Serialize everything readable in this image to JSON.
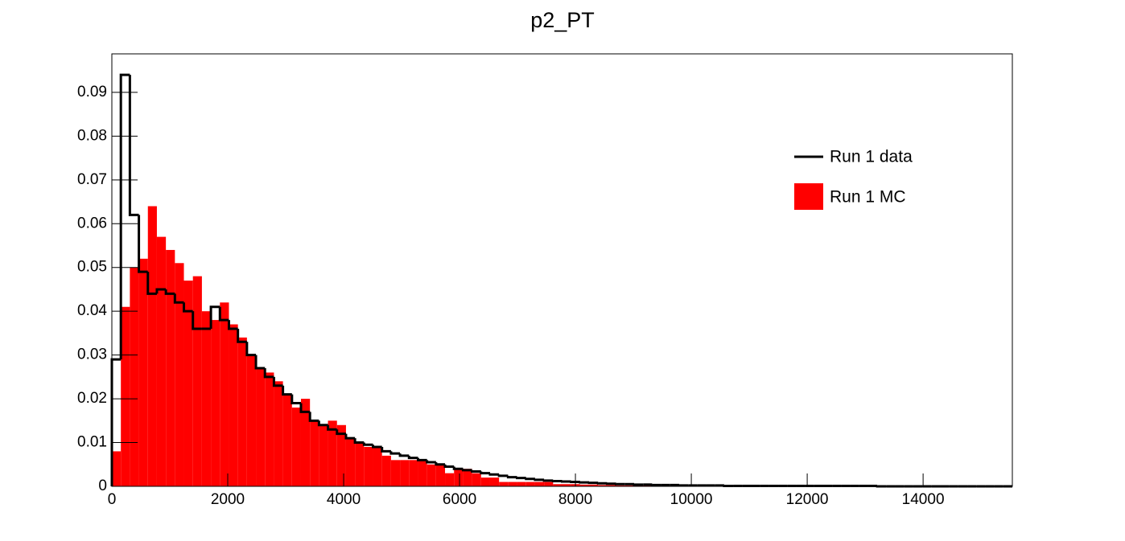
{
  "chart_data": {
    "type": "histogram",
    "title": "p2_PT",
    "bins": [
      0,
      155.4,
      310.8,
      466.2,
      621.6,
      777,
      932.4,
      1087.8,
      1243.2,
      1398.6,
      1554,
      1709.4,
      1864.8,
      2020.2,
      2175.6,
      2331,
      2486.4,
      2641.8,
      2797.2,
      2952.6,
      3108,
      3263.4,
      3418.8,
      3574.2,
      3729.6,
      3885,
      4040.4,
      4195.8,
      4351.2,
      4506.6,
      4662,
      4817.4,
      4972.8,
      5128.2,
      5283.6,
      5439,
      5594.4,
      5749.8,
      5905.2,
      6060.6,
      6216,
      6371.4,
      6526.8,
      6682.2,
      6837.6,
      6993,
      7148.4,
      7303.8,
      7459.2,
      7614.6,
      7770,
      7925.4,
      8080.8,
      8236.2,
      8391.6,
      8547,
      8702.4,
      8857.8,
      9013.2,
      9168.6,
      9324,
      9479.4,
      9634.8,
      9790.2,
      9945.6,
      10101,
      10256.4,
      10411.8,
      10567.2,
      10722.6,
      10878,
      11033.4,
      11188.8,
      11344.2,
      11499.6,
      11655,
      11810.4,
      11965.8,
      12121.2,
      12276.6,
      12432,
      12587.4,
      12742.8,
      12898.2,
      13053.6,
      13209,
      13364.4,
      13519.8,
      13675.2,
      13830.6,
      13986,
      14141.4,
      14296.8,
      14452.2,
      14607.6,
      14763,
      14918.4,
      15073.8,
      15229.2,
      15384.6,
      15540
    ],
    "series": [
      {
        "name": "Run 1 data",
        "color": "#000000",
        "fill": false,
        "values": [
          0.029,
          0.094,
          0.062,
          0.049,
          0.044,
          0.045,
          0.044,
          0.042,
          0.04,
          0.036,
          0.036,
          0.041,
          0.038,
          0.036,
          0.033,
          0.03,
          0.027,
          0.025,
          0.023,
          0.021,
          0.019,
          0.017,
          0.015,
          0.014,
          0.013,
          0.012,
          0.011,
          0.01,
          0.0095,
          0.009,
          0.008,
          0.0075,
          0.007,
          0.0065,
          0.006,
          0.0055,
          0.005,
          0.0045,
          0.004,
          0.0037,
          0.0034,
          0.003,
          0.0027,
          0.0024,
          0.0021,
          0.0019,
          0.0017,
          0.0015,
          0.0013,
          0.0012,
          0.0011,
          0.001,
          0.0009,
          0.0008,
          0.0007,
          0.0006,
          0.0005,
          0.0005,
          0.0004,
          0.0004,
          0.0003,
          0.0003,
          0.0003,
          0.0002,
          0.0002,
          0.0002,
          0.0002,
          0.0002,
          0.0001,
          0.0001,
          0.0001,
          0.0001,
          0.0001,
          0.0001,
          0.0001,
          0.0001,
          0.0001,
          0.0001,
          0.0001,
          0.0001,
          0.0001,
          0.0001,
          0.0001,
          0.0001,
          0.0001,
          0,
          0,
          0,
          0,
          0,
          0,
          0,
          0,
          0,
          0,
          0,
          0,
          0,
          0,
          0
        ]
      },
      {
        "name": "Run 1 MC",
        "color": "#ff0000",
        "fill": true,
        "values": [
          0.008,
          0.041,
          0.05,
          0.052,
          0.064,
          0.057,
          0.054,
          0.051,
          0.047,
          0.048,
          0.04,
          0.038,
          0.042,
          0.037,
          0.034,
          0.03,
          0.027,
          0.026,
          0.024,
          0.021,
          0.018,
          0.02,
          0.015,
          0.014,
          0.015,
          0.014,
          0.011,
          0.01,
          0.009,
          0.009,
          0.007,
          0.006,
          0.006,
          0.006,
          0.006,
          0.005,
          0.005,
          0.003,
          0.004,
          0.004,
          0.003,
          0.002,
          0.002,
          0.001,
          0.001,
          0.001,
          0.001,
          0.001,
          0.001,
          0.0005,
          0.0005,
          0.0005,
          0.0004,
          0.0004,
          0.0003,
          0.0003,
          0.0002,
          0.0002,
          0.0002,
          0.0002,
          0.0001,
          0.0001,
          0.0001,
          0.0001,
          0.0001,
          0.0001,
          0.0001,
          0.0001,
          0.0001,
          0.0001,
          0,
          0,
          0,
          0,
          0,
          0,
          0,
          0,
          0,
          0,
          0,
          0,
          0,
          0,
          0,
          0,
          0,
          0,
          0,
          0,
          0,
          0,
          0,
          0,
          0,
          0,
          0,
          0,
          0,
          0
        ]
      }
    ],
    "xlim": [
      0,
      15540
    ],
    "ylim": [
      0,
      0.0988
    ],
    "xticks": [
      0,
      2000,
      4000,
      6000,
      8000,
      10000,
      12000,
      14000
    ],
    "yticks": [
      0,
      0.01,
      0.02,
      0.03,
      0.04,
      0.05,
      0.06,
      0.07,
      0.08,
      0.09
    ],
    "grid": false,
    "legend": "upper right"
  }
}
